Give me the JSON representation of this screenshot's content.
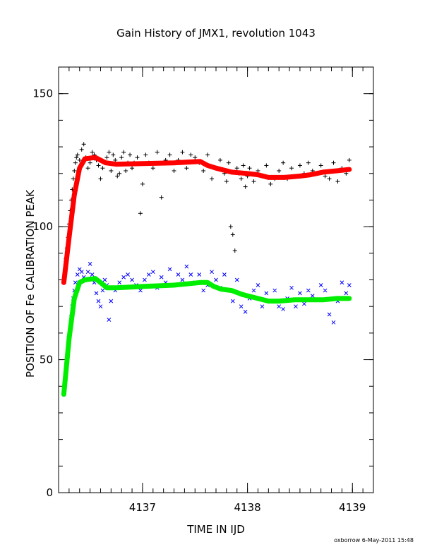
{
  "chart_data": {
    "type": "scatter",
    "title": "Gain History of JMX1, revolution 1043",
    "xlabel": "TIME IN IJD",
    "ylabel": "POSITION OF Fe CALIBRATION PEAK",
    "xlim": [
      4136.2,
      4139.2
    ],
    "ylim": [
      0,
      160
    ],
    "x_ticks": [
      4137,
      4138,
      4139
    ],
    "y_ticks": [
      0,
      50,
      100,
      150
    ],
    "x_ticks_minor_step": 0.1,
    "y_ticks_minor_step": 10,
    "grid": false,
    "colors": {
      "series_1_raw": "#000000",
      "series_1_smooth": "#ff0000",
      "series_2_raw": "#0000ff",
      "series_2_smooth": "#00ee00"
    },
    "series": [
      {
        "marker": "plus",
        "x": [
          4136.25,
          4136.26,
          4136.27,
          4136.28,
          4136.29,
          4136.3,
          4136.31,
          4136.32,
          4136.33,
          4136.34,
          4136.35,
          4136.36,
          4136.37,
          4136.38,
          4136.4,
          4136.42,
          4136.44,
          4136.46,
          4136.48,
          4136.5,
          4136.52,
          4136.54,
          4136.56,
          4136.58,
          4136.6,
          4136.62,
          4136.64,
          4136.66,
          4136.68,
          4136.7,
          4136.72,
          4136.74,
          4136.76,
          4136.78,
          4136.8,
          4136.82,
          4136.84,
          4136.86,
          4136.88,
          4136.9,
          4136.92,
          4136.95,
          4136.98,
          4137.0,
          4137.03,
          4137.06,
          4137.1,
          4137.14,
          4137.18,
          4137.22,
          4137.26,
          4137.3,
          4137.34,
          4137.38,
          4137.42,
          4137.46,
          4137.5,
          4137.54,
          4137.58,
          4137.62,
          4137.66,
          4137.7,
          4137.74,
          4137.78,
          4137.8,
          4137.82,
          4137.84,
          4137.86,
          4137.88,
          4137.9,
          4137.92,
          4137.94,
          4137.96,
          4137.98,
          4138.0,
          4138.02,
          4138.06,
          4138.1,
          4138.14,
          4138.18,
          4138.22,
          4138.26,
          4138.3,
          4138.34,
          4138.38,
          4138.42,
          4138.46,
          4138.5,
          4138.54,
          4138.58,
          4138.62,
          4138.7,
          4138.74,
          4138.78,
          4138.82,
          4138.86,
          4138.9,
          4138.94,
          4138.97
        ],
        "y": [
          79,
          84,
          88,
          92,
          96,
          101,
          106,
          110,
          114,
          118,
          121,
          124,
          126,
          127,
          125,
          129,
          131,
          126,
          122,
          124,
          128,
          127,
          125,
          123,
          118,
          122,
          124,
          126,
          128,
          121,
          127,
          125,
          119,
          120,
          126,
          128,
          121,
          124,
          127,
          122,
          124,
          126,
          105,
          116,
          127,
          124,
          122,
          128,
          111,
          125,
          127,
          121,
          125,
          128,
          122,
          127,
          126,
          124,
          121,
          127,
          118,
          122,
          125,
          120,
          117,
          124,
          100,
          97,
          91,
          122,
          120,
          118,
          123,
          115,
          119,
          122,
          117,
          121,
          119,
          123,
          116,
          118,
          121,
          124,
          118,
          122,
          119,
          123,
          120,
          124,
          121,
          123,
          119,
          118,
          124,
          117,
          122,
          120,
          125
        ],
        "smooth": [
          [
            4136.25,
            79
          ],
          [
            4136.3,
            96
          ],
          [
            4136.35,
            112
          ],
          [
            4136.4,
            122
          ],
          [
            4136.45,
            125.5
          ],
          [
            4136.55,
            126
          ],
          [
            4136.65,
            124
          ],
          [
            4136.75,
            123.5
          ],
          [
            4137.0,
            123.7
          ],
          [
            4137.3,
            124
          ],
          [
            4137.55,
            124.5
          ],
          [
            4137.62,
            123
          ],
          [
            4137.7,
            122
          ],
          [
            4137.85,
            120.5
          ],
          [
            4138.0,
            120
          ],
          [
            4138.1,
            119.5
          ],
          [
            4138.2,
            118.5
          ],
          [
            4138.35,
            118.5
          ],
          [
            4138.5,
            119
          ],
          [
            4138.6,
            119.5
          ],
          [
            4138.72,
            120.5
          ],
          [
            4138.85,
            121
          ],
          [
            4138.97,
            121.5
          ]
        ]
      },
      {
        "marker": "cross",
        "x": [
          4136.25,
          4136.26,
          4136.27,
          4136.28,
          4136.29,
          4136.3,
          4136.31,
          4136.32,
          4136.33,
          4136.34,
          4136.35,
          4136.36,
          4136.38,
          4136.4,
          4136.42,
          4136.44,
          4136.46,
          4136.48,
          4136.5,
          4136.52,
          4136.54,
          4136.56,
          4136.58,
          4136.6,
          4136.62,
          4136.64,
          4136.66,
          4136.68,
          4136.7,
          4136.74,
          4136.78,
          4136.82,
          4136.86,
          4136.9,
          4136.94,
          4136.98,
          4137.02,
          4137.06,
          4137.1,
          4137.14,
          4137.18,
          4137.22,
          4137.26,
          4137.3,
          4137.34,
          4137.38,
          4137.42,
          4137.46,
          4137.5,
          4137.54,
          4137.58,
          4137.62,
          4137.66,
          4137.7,
          4137.74,
          4137.78,
          4137.82,
          4137.86,
          4137.9,
          4137.94,
          4137.98,
          4138.02,
          4138.06,
          4138.1,
          4138.14,
          4138.18,
          4138.22,
          4138.26,
          4138.3,
          4138.34,
          4138.38,
          4138.42,
          4138.46,
          4138.5,
          4138.54,
          4138.58,
          4138.62,
          4138.7,
          4138.74,
          4138.78,
          4138.82,
          4138.86,
          4138.9,
          4138.94,
          4138.97
        ],
        "y": [
          37,
          41,
          45,
          50,
          54,
          58,
          62,
          66,
          70,
          73,
          76,
          79,
          82,
          84,
          83,
          81,
          80,
          83,
          86,
          82,
          79,
          75,
          72,
          70,
          76,
          80,
          78,
          65,
          72,
          76,
          79,
          81,
          82,
          80,
          78,
          76,
          80,
          82,
          83,
          77,
          81,
          79,
          84,
          78,
          82,
          80,
          85,
          82,
          79,
          82,
          76,
          78,
          83,
          80,
          77,
          82,
          76,
          72,
          80,
          70,
          68,
          73,
          76,
          78,
          70,
          75,
          72,
          76,
          70,
          69,
          73,
          77,
          70,
          75,
          71,
          76,
          74,
          78,
          76,
          67,
          64,
          72,
          79,
          75,
          78
        ],
        "smooth": [
          [
            4136.25,
            37
          ],
          [
            4136.3,
            58
          ],
          [
            4136.35,
            73
          ],
          [
            4136.4,
            79
          ],
          [
            4136.45,
            80
          ],
          [
            4136.55,
            80.5
          ],
          [
            4136.6,
            79
          ],
          [
            4136.66,
            77
          ],
          [
            4136.75,
            77
          ],
          [
            4137.0,
            77.5
          ],
          [
            4137.3,
            78
          ],
          [
            4137.55,
            79
          ],
          [
            4137.62,
            79
          ],
          [
            4137.68,
            77.5
          ],
          [
            4137.75,
            76.5
          ],
          [
            4137.85,
            76
          ],
          [
            4137.95,
            74.5
          ],
          [
            4138.0,
            74
          ],
          [
            4138.1,
            73
          ],
          [
            4138.2,
            72
          ],
          [
            4138.3,
            72
          ],
          [
            4138.45,
            72.5
          ],
          [
            4138.6,
            72.5
          ],
          [
            4138.72,
            72.5
          ],
          [
            4138.85,
            73
          ],
          [
            4138.97,
            73
          ]
        ]
      }
    ]
  },
  "footer": "oxborrow 6-May-2011 15:48"
}
